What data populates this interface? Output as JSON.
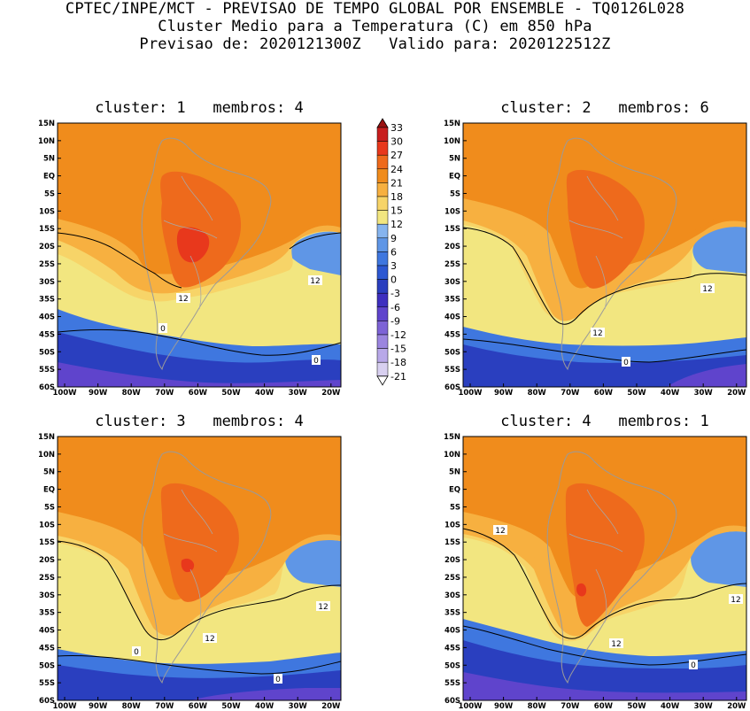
{
  "header": {
    "line1": "CPTEC/INPE/MCT - PREVISAO DE TEMPO GLOBAL POR ENSEMBLE - TQ0126L028",
    "line2": "Cluster Medio para a Temperatura (C) em 850 hPa",
    "line3": "Previsao de: 2020121300Z   Valido para: 2020122512Z"
  },
  "axes": {
    "lat_labels": [
      "15N",
      "10N",
      "5N",
      "EQ",
      "5S",
      "10S",
      "15S",
      "20S",
      "25S",
      "30S",
      "35S",
      "40S",
      "45S",
      "50S",
      "55S",
      "60S"
    ],
    "lon_labels": [
      "100W",
      "90W",
      "80W",
      "70W",
      "60W",
      "50W",
      "40W",
      "30W",
      "20W"
    ]
  },
  "colorbar": {
    "levels": [
      "33",
      "30",
      "27",
      "24",
      "21",
      "18",
      "15",
      "12",
      "9",
      "6",
      "3",
      "0",
      "-3",
      "-6",
      "-9",
      "-12",
      "-15",
      "-18",
      "-21"
    ],
    "colors": [
      "#ffffff",
      "#d8d0f0",
      "#b8a8e8",
      "#9b85df",
      "#7d63d6",
      "#5f44cc",
      "#3e2fbf",
      "#2a3fbf",
      "#2d58d2",
      "#3f77df",
      "#5f96e6",
      "#86b4ee",
      "#f2e680",
      "#f7d468",
      "#f7b040",
      "#f08c1c",
      "#ee6a1c",
      "#e8381c",
      "#c81e1e",
      "#9a1010"
    ]
  },
  "panels": [
    {
      "title": "cluster: 1   membros: 4",
      "labels": [
        {
          "text": "12"
        },
        {
          "text": "12"
        },
        {
          "text": "0"
        },
        {
          "text": "0"
        }
      ]
    },
    {
      "title": "cluster: 2   membros: 6",
      "labels": [
        {
          "text": "12"
        },
        {
          "text": "12"
        },
        {
          "text": "0"
        }
      ]
    },
    {
      "title": "cluster: 3   membros: 4",
      "labels": [
        {
          "text": "12"
        },
        {
          "text": "12"
        },
        {
          "text": "0"
        },
        {
          "text": "0"
        }
      ]
    },
    {
      "title": "cluster: 4   membros: 1",
      "labels": [
        {
          "text": "12"
        },
        {
          "text": "12"
        },
        {
          "text": "12"
        },
        {
          "text": "0"
        }
      ]
    }
  ]
}
